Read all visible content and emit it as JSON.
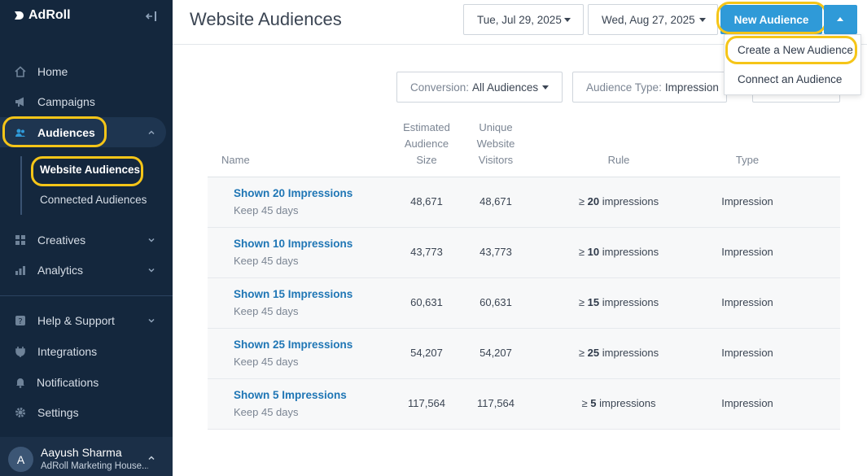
{
  "app": {
    "brand": "AdRoll"
  },
  "sidebar": {
    "items": [
      {
        "label": "Home"
      },
      {
        "label": "Campaigns"
      },
      {
        "label": "Audiences"
      },
      {
        "label": "Creatives"
      },
      {
        "label": "Analytics"
      },
      {
        "label": "Help & Support"
      },
      {
        "label": "Integrations"
      },
      {
        "label": "Notifications"
      },
      {
        "label": "Settings"
      }
    ],
    "subitems": [
      {
        "label": "Website Audiences"
      },
      {
        "label": "Connected Audiences"
      }
    ],
    "user": {
      "initial": "A",
      "name": "Aayush Sharma",
      "org": "AdRoll Marketing House..."
    }
  },
  "header": {
    "title": "Website Audiences",
    "start_date": "Tue, Jul 29, 2025",
    "end_date": "Wed, Aug 27, 2025",
    "new_audience": "New Audience"
  },
  "menu": {
    "items": [
      {
        "label": "Create a New Audience"
      },
      {
        "label": "Connect an Audience"
      }
    ]
  },
  "filters": {
    "conversion_label": "Conversion:",
    "conversion_value": "All Audiences",
    "type_label": "Audience Type:",
    "type_value": "Impression"
  },
  "table": {
    "headers": {
      "name": "Name",
      "size": [
        "Estimated",
        "Audience",
        "Size"
      ],
      "visitors": [
        "Unique",
        "Website",
        "Visitors"
      ],
      "rule": "Rule",
      "type": "Type"
    },
    "rows": [
      {
        "name": "Shown 20 Impressions",
        "keep": "Keep 45 days",
        "size": "48,671",
        "visitors": "48,671",
        "rule_prefix": "≥",
        "rule_num": "20",
        "rule_suffix": "impressions",
        "type": "Impression"
      },
      {
        "name": "Shown 10 Impressions",
        "keep": "Keep 45 days",
        "size": "43,773",
        "visitors": "43,773",
        "rule_prefix": "≥",
        "rule_num": "10",
        "rule_suffix": "impressions",
        "type": "Impression"
      },
      {
        "name": "Shown 15 Impressions",
        "keep": "Keep 45 days",
        "size": "60,631",
        "visitors": "60,631",
        "rule_prefix": "≥",
        "rule_num": "15",
        "rule_suffix": "impressions",
        "type": "Impression"
      },
      {
        "name": "Shown 25 Impressions",
        "keep": "Keep 45 days",
        "size": "54,207",
        "visitors": "54,207",
        "rule_prefix": "≥",
        "rule_num": "25",
        "rule_suffix": "impressions",
        "type": "Impression"
      },
      {
        "name": "Shown 5 Impressions",
        "keep": "Keep 45 days",
        "size": "117,564",
        "visitors": "117,564",
        "rule_prefix": "≥",
        "rule_num": "5",
        "rule_suffix": "impressions",
        "type": "Impression"
      }
    ]
  },
  "colors": {
    "sidebar_bg": "#14273d",
    "accent": "#2f9ad8",
    "link": "#1f76b5",
    "highlight": "#f5c518"
  }
}
